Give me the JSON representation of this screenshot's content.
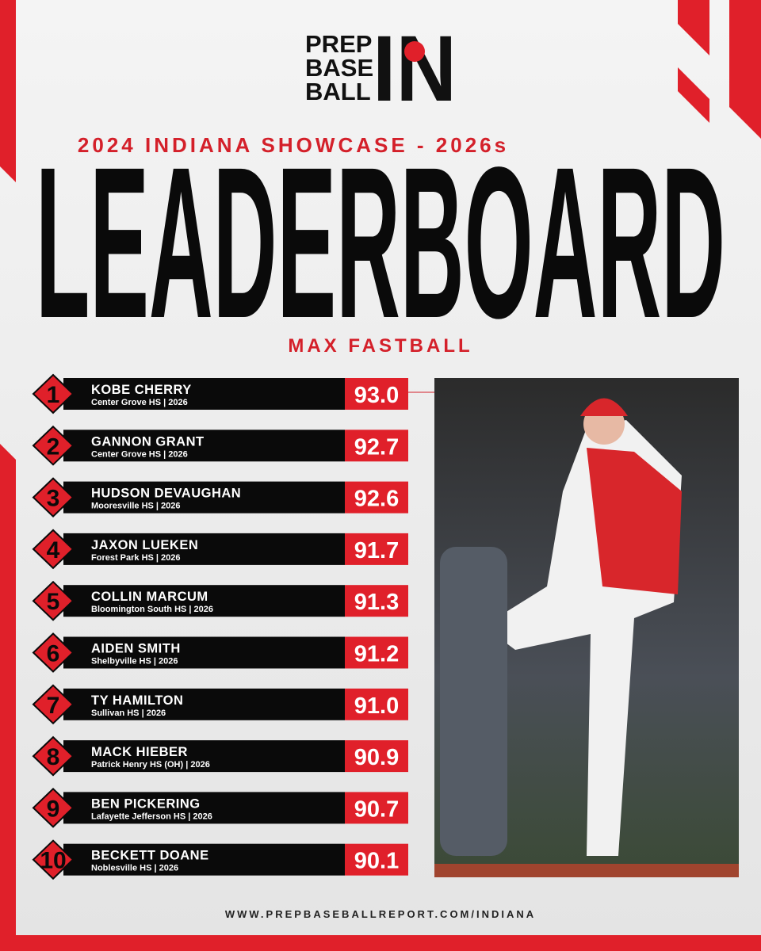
{
  "logo": {
    "lines": [
      "PREP",
      "BASE",
      "BALL"
    ],
    "mark": "IN"
  },
  "subtitle": "2024 INDIANA SHOWCASE - 2026s",
  "title": "LEADERBOARD",
  "metric": "MAX FASTBALL",
  "rows": [
    {
      "rank": "1",
      "name": "KOBE CHERRY",
      "school": "Center Grove HS | 2026",
      "value": "93.0"
    },
    {
      "rank": "2",
      "name": "GANNON GRANT",
      "school": "Center Grove HS | 2026",
      "value": "92.7"
    },
    {
      "rank": "3",
      "name": "HUDSON DEVAUGHAN",
      "school": "Mooresville HS | 2026",
      "value": "92.6"
    },
    {
      "rank": "4",
      "name": "JAXON LUEKEN",
      "school": "Forest Park HS | 2026",
      "value": "91.7"
    },
    {
      "rank": "5",
      "name": "COLLIN MARCUM",
      "school": "Bloomington South HS | 2026",
      "value": "91.3"
    },
    {
      "rank": "6",
      "name": "AIDEN SMITH",
      "school": "Shelbyville HS | 2026",
      "value": "91.2"
    },
    {
      "rank": "7",
      "name": "TY HAMILTON",
      "school": "Sullivan HS | 2026",
      "value": "91.0"
    },
    {
      "rank": "8",
      "name": "MACK HIEBER",
      "school": "Patrick Henry HS (OH) | 2026",
      "value": "90.9"
    },
    {
      "rank": "9",
      "name": "BEN PICKERING",
      "school": "Lafayette Jefferson HS | 2026",
      "value": "90.7"
    },
    {
      "rank": "10",
      "name": "BECKETT DOANE",
      "school": "Noblesville HS | 2026",
      "value": "90.1"
    }
  ],
  "footer": "WWW.PREPBASEBALLREPORT.COM/INDIANA"
}
